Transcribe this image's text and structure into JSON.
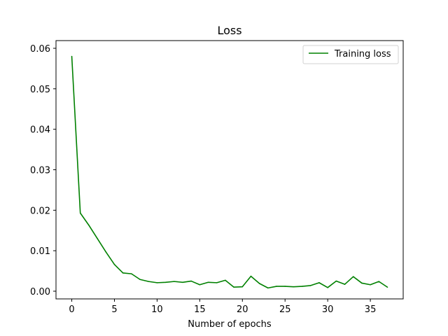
{
  "chart_data": {
    "type": "line",
    "title": "Loss",
    "xlabel": "Number of epochs",
    "ylabel": "",
    "xlim": [
      -1.85,
      38.85
    ],
    "ylim": [
      -0.0019,
      0.0619
    ],
    "xticks": [
      0,
      5,
      10,
      15,
      20,
      25,
      30,
      35
    ],
    "yticks": [
      0.0,
      0.01,
      0.02,
      0.03,
      0.04,
      0.05,
      0.06
    ],
    "xtick_labels": [
      "0",
      "5",
      "10",
      "15",
      "20",
      "25",
      "30",
      "35"
    ],
    "ytick_labels": [
      "0.00",
      "0.01",
      "0.02",
      "0.03",
      "0.04",
      "0.05",
      "0.06"
    ],
    "grid": false,
    "legend_position": "top-right",
    "series": [
      {
        "name": "Training loss",
        "color": "#008000",
        "x": [
          0,
          1,
          2,
          3,
          4,
          5,
          6,
          7,
          8,
          9,
          10,
          11,
          12,
          13,
          14,
          15,
          16,
          17,
          18,
          19,
          20,
          21,
          22,
          23,
          24,
          25,
          26,
          27,
          28,
          29,
          30,
          31,
          32,
          33,
          34,
          35,
          36,
          37
        ],
        "values": [
          0.058,
          0.0193,
          0.0163,
          0.013,
          0.0097,
          0.0066,
          0.0045,
          0.0043,
          0.0029,
          0.0024,
          0.0021,
          0.0022,
          0.0024,
          0.0022,
          0.0025,
          0.0016,
          0.0022,
          0.0021,
          0.0027,
          0.001,
          0.0011,
          0.0037,
          0.0019,
          0.0008,
          0.0012,
          0.0012,
          0.0011,
          0.0012,
          0.0014,
          0.0021,
          0.0009,
          0.0025,
          0.0017,
          0.0036,
          0.002,
          0.0016,
          0.0024,
          0.001
        ]
      }
    ]
  }
}
